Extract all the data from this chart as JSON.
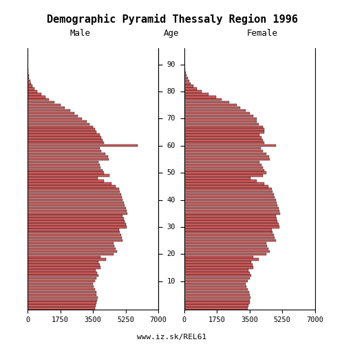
{
  "title": "Demographic Pyramid Thessaly Region 1996",
  "male_label": "Male",
  "female_label": "Female",
  "age_label": "Age",
  "footer": "www.iz.sk/REL61",
  "bar_color": "#CD5C5C",
  "bar_edge_color": "#000000",
  "xlim": 7000,
  "xticks_male": [
    7000,
    5250,
    3500,
    1750,
    0
  ],
  "xticks_female": [
    0,
    1750,
    3500,
    5250,
    7000
  ],
  "age_ticks": [
    10,
    20,
    30,
    40,
    50,
    60,
    70,
    80,
    90
  ],
  "ages": [
    0,
    1,
    2,
    3,
    4,
    5,
    6,
    7,
    8,
    9,
    10,
    11,
    12,
    13,
    14,
    15,
    16,
    17,
    18,
    19,
    20,
    21,
    22,
    23,
    24,
    25,
    26,
    27,
    28,
    29,
    30,
    31,
    32,
    33,
    34,
    35,
    36,
    37,
    38,
    39,
    40,
    41,
    42,
    43,
    44,
    45,
    46,
    47,
    48,
    49,
    50,
    51,
    52,
    53,
    54,
    55,
    56,
    57,
    58,
    59,
    60,
    61,
    62,
    63,
    64,
    65,
    66,
    67,
    68,
    69,
    70,
    71,
    72,
    73,
    74,
    75,
    76,
    77,
    78,
    79,
    80,
    81,
    82,
    83,
    84,
    85,
    86,
    87,
    88,
    89,
    90,
    91,
    92,
    93,
    94,
    95
  ],
  "male": [
    3600,
    3650,
    3700,
    3720,
    3750,
    3700,
    3680,
    3600,
    3550,
    3500,
    3600,
    3700,
    3800,
    3720,
    3650,
    3900,
    3850,
    3800,
    4200,
    3900,
    4600,
    4800,
    4700,
    4650,
    4600,
    5100,
    5050,
    5000,
    4950,
    4900,
    5300,
    5250,
    5200,
    5150,
    5100,
    5350,
    5300,
    5250,
    5200,
    5150,
    5100,
    5050,
    5000,
    4950,
    4900,
    4700,
    4500,
    4100,
    3750,
    4400,
    4100,
    4000,
    3900,
    3850,
    3800,
    4350,
    4300,
    4150,
    3950,
    3850,
    5900,
    4100,
    4000,
    3950,
    3850,
    3700,
    3600,
    3500,
    3300,
    3150,
    2900,
    2700,
    2500,
    2300,
    2000,
    1750,
    1450,
    1150,
    950,
    750,
    520,
    370,
    260,
    185,
    135,
    92,
    62,
    42,
    26,
    16,
    10,
    6,
    3,
    2,
    1,
    1
  ],
  "female": [
    3400,
    3450,
    3500,
    3520,
    3550,
    3500,
    3480,
    3400,
    3350,
    3300,
    3400,
    3500,
    3600,
    3520,
    3450,
    3700,
    3650,
    3600,
    4000,
    3700,
    4400,
    4600,
    4500,
    4450,
    4400,
    4900,
    4850,
    4800,
    4750,
    4700,
    5100,
    5050,
    5000,
    4950,
    4900,
    5150,
    5100,
    5050,
    5000,
    4950,
    4900,
    4850,
    4800,
    4750,
    4700,
    4500,
    4300,
    3900,
    3550,
    4200,
    4400,
    4300,
    4200,
    4150,
    4050,
    4600,
    4550,
    4400,
    4200,
    4100,
    4900,
    4300,
    4200,
    4150,
    4050,
    4300,
    4300,
    4200,
    4000,
    3900,
    3900,
    3700,
    3500,
    3300,
    3000,
    2800,
    2400,
    2000,
    1700,
    1300,
    950,
    680,
    500,
    365,
    260,
    185,
    125,
    82,
    52,
    32,
    19,
    11,
    7,
    4,
    2,
    1
  ]
}
